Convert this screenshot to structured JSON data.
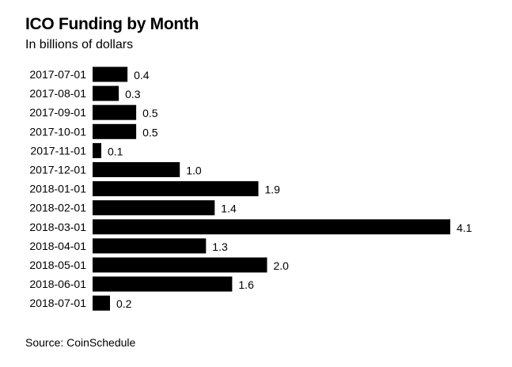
{
  "chart_data": {
    "type": "bar",
    "orientation": "horizontal",
    "title": "ICO Funding by Month",
    "subtitle": "In billions of dollars",
    "categories": [
      "2017-07-01",
      "2017-08-01",
      "2017-09-01",
      "2017-10-01",
      "2017-11-01",
      "2017-12-01",
      "2018-01-01",
      "2018-02-01",
      "2018-03-01",
      "2018-04-01",
      "2018-05-01",
      "2018-06-01",
      "2018-07-01"
    ],
    "values": [
      0.4,
      0.3,
      0.5,
      0.5,
      0.1,
      1.0,
      1.9,
      1.4,
      4.1,
      1.3,
      2.0,
      1.6,
      0.2
    ],
    "value_labels": [
      "0.4",
      "0.3",
      "0.5",
      "0.5",
      "0.1",
      "1.0",
      "1.9",
      "1.4",
      "4.1",
      "1.3",
      "2.0",
      "1.6",
      "0.2"
    ],
    "xlabel": "",
    "ylabel": "",
    "xlim": [
      0,
      4.1
    ],
    "grid": false,
    "legend": "none",
    "bar_color": "#000000",
    "source": "Source: CoinSchedule"
  }
}
